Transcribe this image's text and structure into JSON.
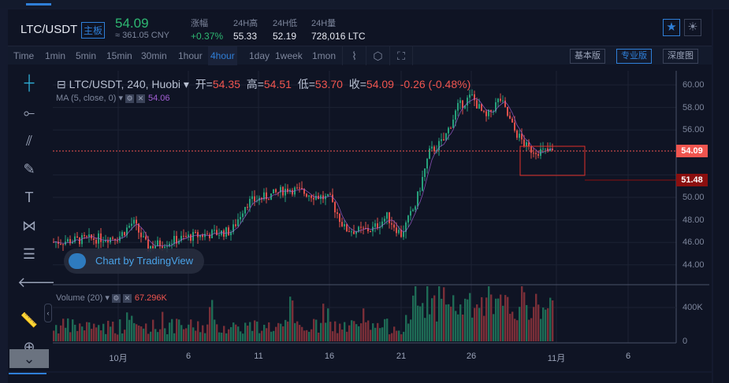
{
  "header": {
    "symbol": "LTC/USDT",
    "board_badge": "主板",
    "last_price": "54.09",
    "cny_price": "≈ 361.05 CNY",
    "stats": [
      {
        "label": "涨幅",
        "value": "+0.37%",
        "color": "#2eb872"
      },
      {
        "label": "24H高",
        "value": "55.33"
      },
      {
        "label": "24H低",
        "value": "52.19"
      },
      {
        "label": "24H量",
        "value": "728,016 LTC"
      }
    ],
    "favorite_icon": "star-icon",
    "theme_icon": "sun-icon"
  },
  "toolbar": {
    "intervals": [
      "Time",
      "1min",
      "5min",
      "15min",
      "30min",
      "1hour",
      "4hour",
      "1day",
      "1week",
      "1mon"
    ],
    "active_interval": "4hour",
    "icons": [
      "indicator-icon",
      "settings-hex-icon",
      "fullscreen-icon"
    ],
    "views": [
      "基本版",
      "专业版",
      "深度图"
    ],
    "active_view": "专业版"
  },
  "legend": {
    "title": "LTC/USDT, 240, Huobi",
    "open_label": "开=",
    "open": "54.35",
    "high_label": "高=",
    "high": "54.51",
    "low_label": "低=",
    "low": "53.70",
    "close_label": "收=",
    "close": "54.09",
    "change": "-0.26 (-0.48%)",
    "ma_label": "MA (5, close, 0)",
    "ma_value": "54.06",
    "volume_label": "Volume (20)",
    "volume_value": "67.296K"
  },
  "watermark": "Chart by TradingView",
  "price_axis": {
    "ticks": [
      "60.00",
      "58.00",
      "56.00",
      "50.00",
      "48.00",
      "46.00",
      "44.00"
    ],
    "current_price": "54.09",
    "marker_price": "51.48",
    "volume_ticks": [
      "400K",
      "0"
    ]
  },
  "time_axis": [
    "10月",
    "6",
    "11",
    "16",
    "21",
    "26",
    "11月",
    "6"
  ],
  "colors": {
    "up": "#26a17b",
    "down": "#e0504a",
    "accent": "#2f7fd8",
    "ma": "#a35fd6"
  },
  "chart_data": {
    "type": "candlestick",
    "interval": "4h",
    "ylim": [
      43,
      61
    ],
    "price_path": [
      {
        "date": "9/26",
        "close": 46
      },
      {
        "date": "9/28",
        "close": 46.2
      },
      {
        "date": "10/1",
        "close": 46.5
      },
      {
        "date": "10/2",
        "close": 47.8
      },
      {
        "date": "10/3",
        "close": 45.6
      },
      {
        "date": "10/5",
        "close": 46.2
      },
      {
        "date": "10/6",
        "close": 46.5
      },
      {
        "date": "10/9",
        "close": 47
      },
      {
        "date": "10/10",
        "close": 49.5
      },
      {
        "date": "10/12",
        "close": 50.3
      },
      {
        "date": "10/13",
        "close": 50.8
      },
      {
        "date": "10/16",
        "close": 49.8
      },
      {
        "date": "10/17",
        "close": 47.2
      },
      {
        "date": "10/18",
        "close": 47
      },
      {
        "date": "10/19",
        "close": 47.2
      },
      {
        "date": "10/20",
        "close": 48.3
      },
      {
        "date": "10/21",
        "close": 46.7
      },
      {
        "date": "10/22",
        "close": 49.3
      },
      {
        "date": "10/23",
        "close": 54
      },
      {
        "date": "10/24",
        "close": 55
      },
      {
        "date": "10/25",
        "close": 58
      },
      {
        "date": "10/26",
        "close": 59
      },
      {
        "date": "10/27",
        "close": 57
      },
      {
        "date": "10/28",
        "close": 58.8
      },
      {
        "date": "10/29",
        "close": 56
      },
      {
        "date": "10/30",
        "close": 54.3
      },
      {
        "date": "10/31",
        "close": 54.09
      }
    ]
  }
}
